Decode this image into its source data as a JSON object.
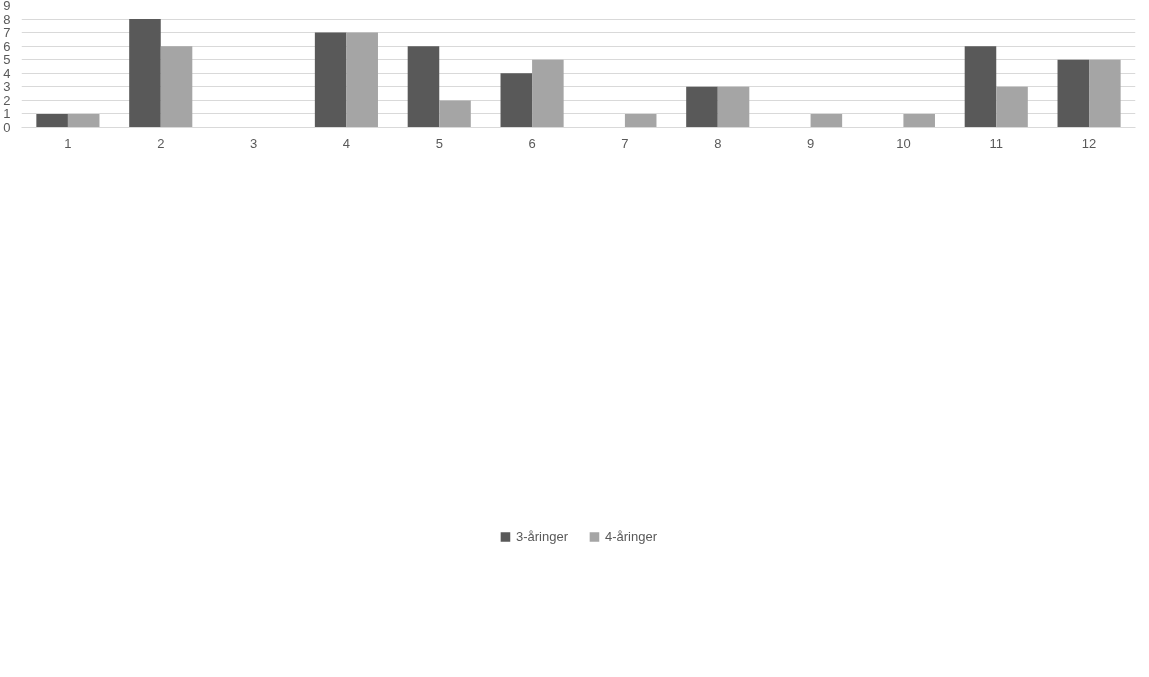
{
  "chart_data": {
    "type": "bar",
    "categories": [
      "1",
      "2",
      "3",
      "4",
      "5",
      "6",
      "7",
      "8",
      "9",
      "10",
      "11",
      "12"
    ],
    "series": [
      {
        "name": "3-åringer",
        "color": "#595959",
        "values": [
          1,
          8,
          0,
          7,
          6,
          4,
          0,
          3,
          0,
          0,
          6,
          5
        ]
      },
      {
        "name": "4-åringer",
        "color": "#a5a5a5",
        "values": [
          1,
          6,
          0,
          7,
          2,
          5,
          1,
          3,
          1,
          1,
          3,
          5
        ]
      }
    ],
    "ylim": [
      0,
      9
    ],
    "yticks": [
      0,
      1,
      2,
      3,
      4,
      5,
      6,
      7,
      8,
      9
    ],
    "grid": "y",
    "legend": "bottom"
  }
}
